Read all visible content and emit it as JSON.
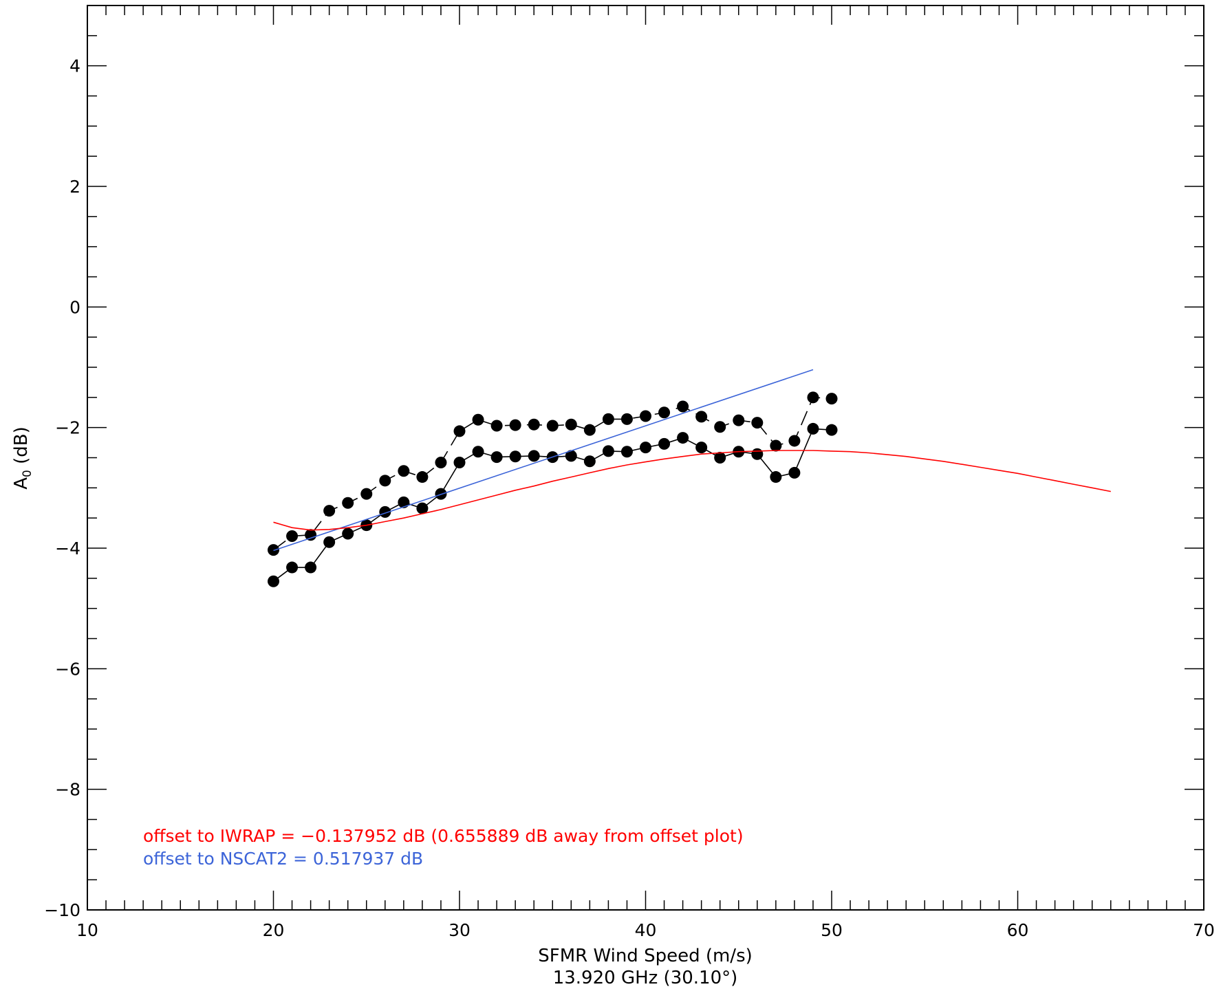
{
  "chart_data": {
    "type": "line",
    "title": "",
    "xlabel": "SFMR Wind Speed (m/s)",
    "xlabel2": "13.920 GHz (30.10°)",
    "ylabel_main": "A",
    "ylabel_sub": "0",
    "ylabel_unit": " (dB)",
    "xlim": [
      10,
      70
    ],
    "ylim": [
      -10,
      5
    ],
    "xticks": [
      10,
      20,
      30,
      40,
      50,
      60,
      70
    ],
    "yticks": [
      -10,
      -8,
      -6,
      -4,
      -2,
      0,
      2,
      4
    ],
    "xtick_labels": [
      "10",
      "20",
      "30",
      "40",
      "50",
      "60",
      "70"
    ],
    "ytick_labels": [
      "−10",
      "−8",
      "−6",
      "−4",
      "−2",
      "0",
      "2",
      "4"
    ],
    "x_minor_step": 1,
    "y_minor_step": 0.5,
    "grid": false,
    "series": [
      {
        "style": "dashed-markers",
        "color": "#000000",
        "x": [
          20,
          21,
          22,
          23,
          24,
          25,
          26,
          27,
          28,
          29,
          30,
          31,
          32,
          33,
          34,
          35,
          36,
          37,
          38,
          39,
          40,
          41,
          42,
          43,
          44,
          45,
          46,
          47,
          48,
          49,
          50
        ],
        "y": [
          -4.03,
          -3.8,
          -3.78,
          -3.38,
          -3.25,
          -3.1,
          -2.88,
          -2.72,
          -2.82,
          -2.58,
          -2.06,
          -1.87,
          -1.97,
          -1.96,
          -1.95,
          -1.97,
          -1.95,
          -2.04,
          -1.86,
          -1.86,
          -1.81,
          -1.75,
          -1.65,
          -1.82,
          -1.99,
          -1.88,
          -1.92,
          -2.3,
          -2.22,
          -1.5,
          -1.52
        ]
      },
      {
        "style": "solid-markers",
        "color": "#000000",
        "x": [
          20,
          21,
          22,
          23,
          24,
          25,
          26,
          27,
          28,
          29,
          30,
          31,
          32,
          33,
          34,
          35,
          36,
          37,
          38,
          39,
          40,
          41,
          42,
          43,
          44,
          45,
          46,
          47,
          48,
          49,
          50
        ],
        "y": [
          -4.55,
          -4.32,
          -4.32,
          -3.9,
          -3.76,
          -3.62,
          -3.4,
          -3.24,
          -3.34,
          -3.1,
          -2.58,
          -2.4,
          -2.49,
          -2.48,
          -2.47,
          -2.49,
          -2.47,
          -2.56,
          -2.39,
          -2.4,
          -2.33,
          -2.27,
          -2.17,
          -2.33,
          -2.5,
          -2.4,
          -2.44,
          -2.82,
          -2.75,
          -2.02,
          -2.04
        ]
      },
      {
        "style": "line",
        "color": "#3c64d8",
        "x": [
          20,
          49
        ],
        "y": [
          -4.04,
          -1.04
        ]
      },
      {
        "style": "line",
        "color": "#ff0000",
        "x": [
          20,
          21,
          22,
          23,
          24,
          25,
          26,
          27,
          28,
          29,
          30,
          31,
          32,
          33,
          34,
          35,
          36,
          37,
          38,
          39,
          40,
          41,
          42,
          43,
          44,
          45,
          46,
          47,
          48,
          49,
          50,
          51,
          52,
          53,
          54,
          55,
          56,
          57,
          58,
          59,
          60,
          61,
          62,
          63,
          64,
          65
        ],
        "y": [
          -3.57,
          -3.66,
          -3.7,
          -3.69,
          -3.66,
          -3.62,
          -3.56,
          -3.5,
          -3.43,
          -3.36,
          -3.28,
          -3.2,
          -3.12,
          -3.04,
          -2.97,
          -2.89,
          -2.82,
          -2.75,
          -2.68,
          -2.62,
          -2.57,
          -2.52,
          -2.48,
          -2.44,
          -2.42,
          -2.4,
          -2.39,
          -2.38,
          -2.38,
          -2.38,
          -2.39,
          -2.4,
          -2.42,
          -2.45,
          -2.48,
          -2.52,
          -2.56,
          -2.61,
          -2.66,
          -2.71,
          -2.76,
          -2.82,
          -2.88,
          -2.94,
          -3.0,
          -3.06
        ]
      }
    ]
  },
  "annotations": {
    "iwrap_text": "offset to IWRAP = −0.137952 dB (0.655889 dB away from offset plot)",
    "nscat_text": "offset to NSCAT2 = 0.517937 dB",
    "iwrap_color": "#ff0000",
    "nscat_color": "#3c64d8"
  }
}
